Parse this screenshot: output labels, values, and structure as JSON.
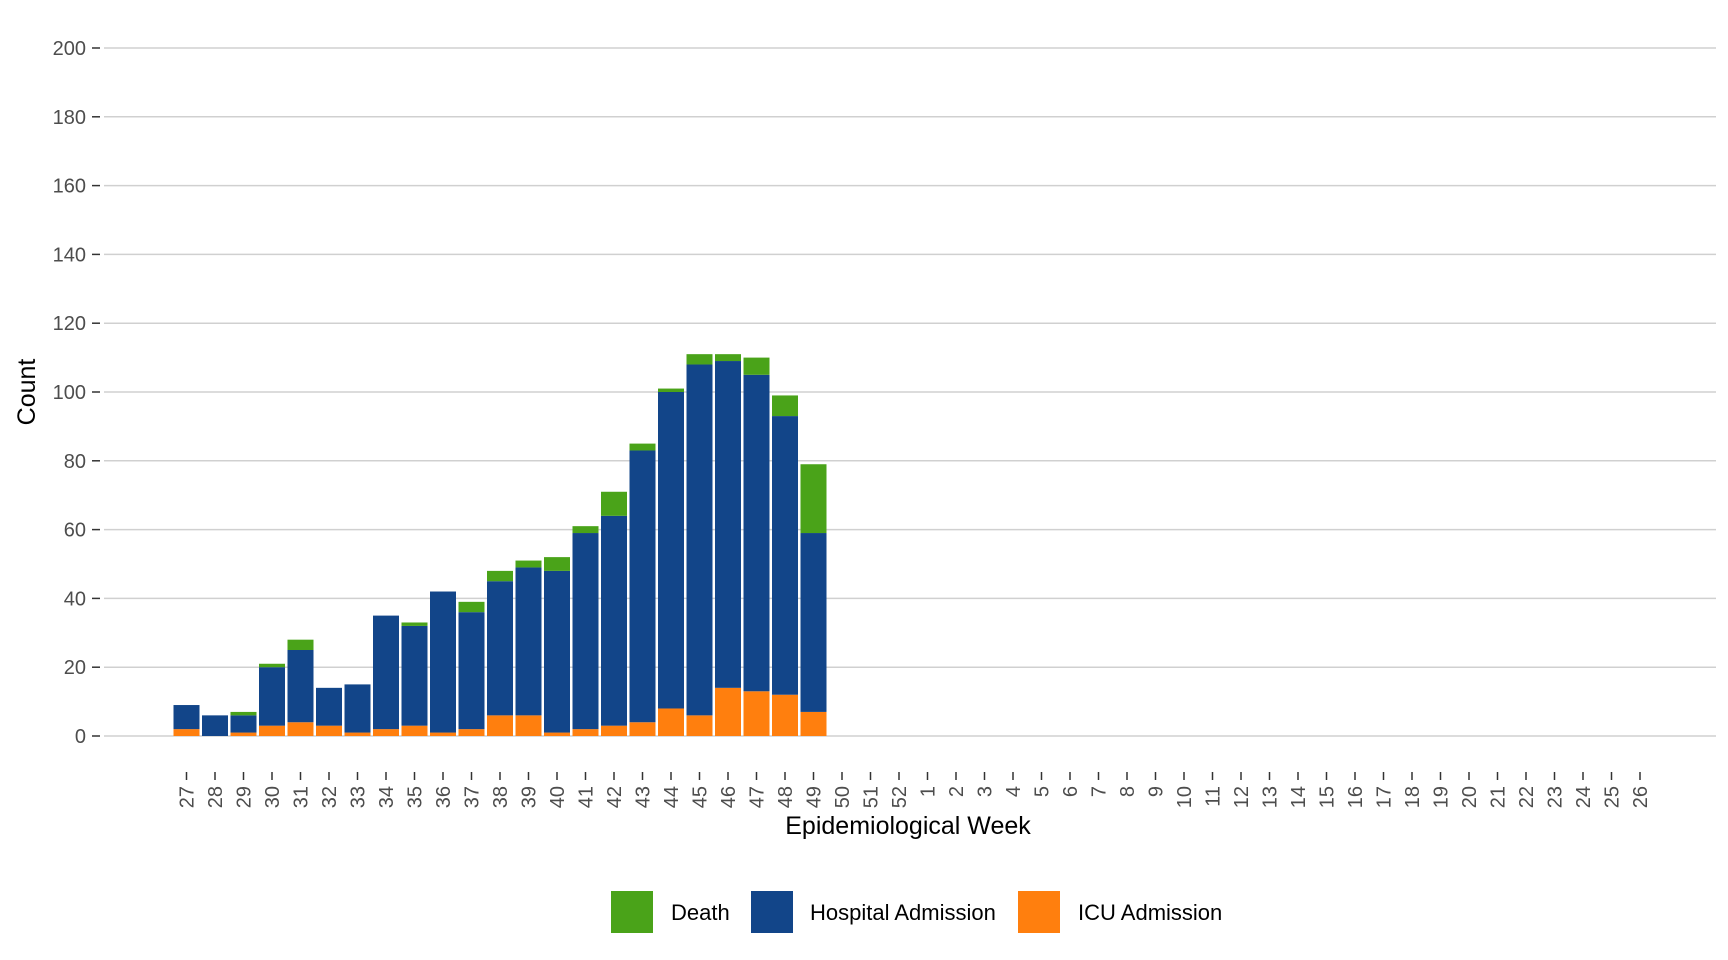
{
  "chart_data": {
    "type": "bar",
    "stacked": true,
    "xlabel": "Epidemiological Week",
    "ylabel": "Count",
    "ylim": [
      0,
      200
    ],
    "yticks": [
      0,
      20,
      40,
      60,
      80,
      100,
      120,
      140,
      160,
      180,
      200
    ],
    "grid": true,
    "legend_position": "bottom",
    "categories": [
      "27",
      "28",
      "29",
      "30",
      "31",
      "32",
      "33",
      "34",
      "35",
      "36",
      "37",
      "38",
      "39",
      "40",
      "41",
      "42",
      "43",
      "44",
      "45",
      "46",
      "47",
      "48",
      "49",
      "50",
      "51",
      "52",
      "1",
      "2",
      "3",
      "4",
      "5",
      "6",
      "7",
      "8",
      "9",
      "10",
      "11",
      "12",
      "13",
      "14",
      "15",
      "16",
      "17",
      "18",
      "19",
      "20",
      "21",
      "22",
      "23",
      "24",
      "25",
      "26"
    ],
    "series": [
      {
        "name": "ICU Admission",
        "color": "#ff7f0e",
        "values": [
          2,
          0,
          1,
          3,
          4,
          3,
          1,
          2,
          3,
          1,
          2,
          6,
          6,
          1,
          2,
          3,
          4,
          8,
          6,
          14,
          13,
          12,
          7,
          0,
          0,
          0,
          0,
          0,
          0,
          0,
          0,
          0,
          0,
          0,
          0,
          0,
          0,
          0,
          0,
          0,
          0,
          0,
          0,
          0,
          0,
          0,
          0,
          0,
          0,
          0,
          0,
          0
        ]
      },
      {
        "name": "Hospital Admission",
        "color": "#124589",
        "values": [
          7,
          6,
          5,
          17,
          21,
          11,
          14,
          33,
          29,
          41,
          34,
          39,
          43,
          47,
          57,
          61,
          79,
          92,
          102,
          95,
          92,
          81,
          52,
          0,
          0,
          0,
          0,
          0,
          0,
          0,
          0,
          0,
          0,
          0,
          0,
          0,
          0,
          0,
          0,
          0,
          0,
          0,
          0,
          0,
          0,
          0,
          0,
          0,
          0,
          0,
          0,
          0
        ]
      },
      {
        "name": "Death",
        "color": "#4aa319",
        "values": [
          0,
          0,
          1,
          1,
          3,
          0,
          0,
          0,
          1,
          0,
          3,
          3,
          2,
          4,
          2,
          7,
          2,
          1,
          3,
          2,
          5,
          6,
          20,
          0,
          0,
          0,
          0,
          0,
          0,
          0,
          0,
          0,
          0,
          0,
          0,
          0,
          0,
          0,
          0,
          0,
          0,
          0,
          0,
          0,
          0,
          0,
          0,
          0,
          0,
          0,
          0,
          0
        ]
      }
    ],
    "legend_order": [
      "Death",
      "Hospital Admission",
      "ICU Admission"
    ]
  }
}
